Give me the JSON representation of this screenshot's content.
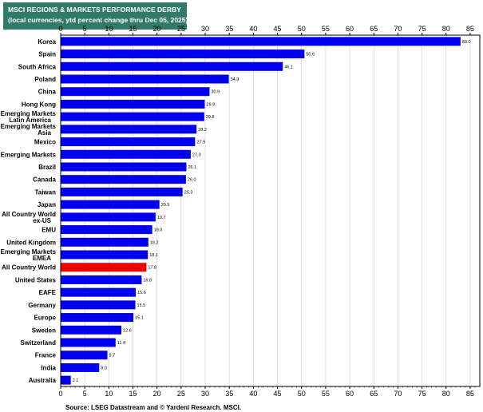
{
  "header": {
    "title": "MSCI REGIONS & MARKETS PERFORMANCE DERBY",
    "subtitle": "(local currencies, ytd percent change thru Dec 05, 2025)"
  },
  "footer": {
    "source": "Source: LSEG Datastream and © Yardeni Research. MSCI."
  },
  "colors": {
    "bar": "#0000ee",
    "highlight": "#ee0000",
    "title_bg": "#2f7a68",
    "grid": "#d8d8d8"
  },
  "chart_data": {
    "type": "bar",
    "orientation": "horizontal",
    "title": "MSCI REGIONS & MARKETS PERFORMANCE DERBY",
    "subtitle": "(local currencies, ytd percent change thru Dec 05, 2025)",
    "xlim": [
      0,
      87
    ],
    "xticks": [
      0,
      5,
      10,
      15,
      20,
      25,
      30,
      35,
      40,
      45,
      50,
      55,
      60,
      65,
      70,
      75,
      80,
      85
    ],
    "grid": true,
    "highlight": "All Country World",
    "categories": [
      [
        "Korea"
      ],
      [
        "Spain"
      ],
      [
        "South Africa"
      ],
      [
        "Poland"
      ],
      [
        "China"
      ],
      [
        "Hong Kong"
      ],
      [
        "Emerging Markets",
        "Latin America"
      ],
      [
        "Emerging Markets",
        "Asia"
      ],
      [
        "Mexico"
      ],
      [
        "Emerging Markets"
      ],
      [
        "Brazil"
      ],
      [
        "Canada"
      ],
      [
        "Taiwan"
      ],
      [
        "Japan"
      ],
      [
        "All Country World",
        "ex-US"
      ],
      [
        "EMU"
      ],
      [
        "United Kingdom"
      ],
      [
        "Emerging Markets",
        "EMEA"
      ],
      [
        "All Country World"
      ],
      [
        "United States"
      ],
      [
        "EAFE"
      ],
      [
        "Germany"
      ],
      [
        "Europe"
      ],
      [
        "Sweden"
      ],
      [
        "Switzerland"
      ],
      [
        "France"
      ],
      [
        "India"
      ],
      [
        "Australia"
      ]
    ],
    "values": [
      83.0,
      50.6,
      46.1,
      34.9,
      30.9,
      29.9,
      29.8,
      28.2,
      27.9,
      27.0,
      26.1,
      26.0,
      25.3,
      20.5,
      19.7,
      19.0,
      18.2,
      18.1,
      17.8,
      16.8,
      15.6,
      15.5,
      15.1,
      12.6,
      11.4,
      9.7,
      8.0,
      2.1
    ],
    "value_labels": [
      "83.0",
      "50.6",
      "46.1",
      "34.9",
      "30.9",
      "29.9",
      "29.8",
      "28.2",
      "27.9",
      "27.0",
      "26.1",
      "26.0",
      "25.3",
      "20.5",
      "19.7",
      "19.0",
      "18.2",
      "18.1",
      "17.8",
      "16.8",
      "15.6",
      "15.5",
      "15.1",
      "12.6",
      "11.4",
      "9.7",
      "8.0",
      "2.1"
    ]
  }
}
